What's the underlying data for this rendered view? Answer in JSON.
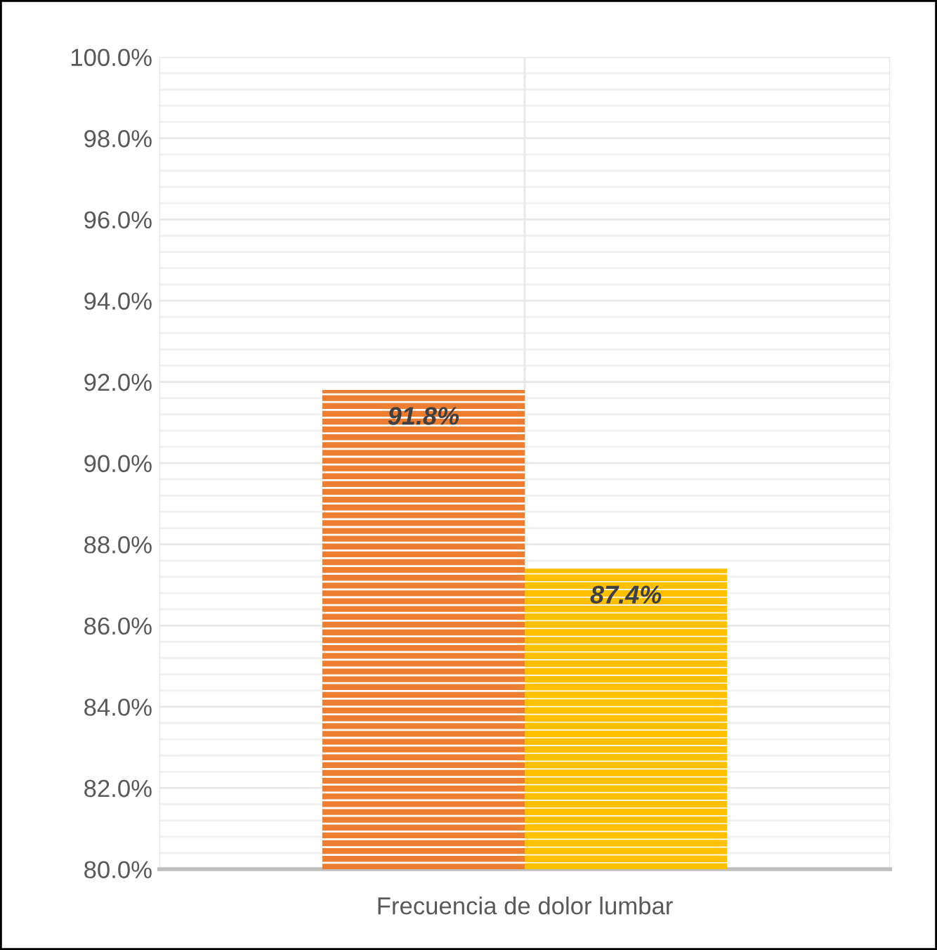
{
  "chart_data": {
    "type": "bar",
    "categories": [
      "Frecuencia de dolor lumbar"
    ],
    "series": [
      {
        "color": "#ed7d31",
        "values": [
          91.8
        ],
        "value_labels": [
          "91.8%"
        ]
      },
      {
        "color": "#ffc000",
        "values": [
          87.4
        ],
        "value_labels": [
          "87.4%"
        ]
      }
    ],
    "ylim": [
      80,
      100
    ],
    "yticks": [
      {
        "value": 80,
        "label": "80.0%"
      },
      {
        "value": 82,
        "label": "82.0%"
      },
      {
        "value": 84,
        "label": "84.0%"
      },
      {
        "value": 86,
        "label": "86.0%"
      },
      {
        "value": 88,
        "label": "88.0%"
      },
      {
        "value": 90,
        "label": "90.0%"
      },
      {
        "value": 92,
        "label": "92.0%"
      },
      {
        "value": 94,
        "label": "94.0%"
      },
      {
        "value": 96,
        "label": "96.0%"
      },
      {
        "value": 98,
        "label": "98.0%"
      },
      {
        "value": 100,
        "label": "100.0%"
      }
    ],
    "grid": true
  }
}
